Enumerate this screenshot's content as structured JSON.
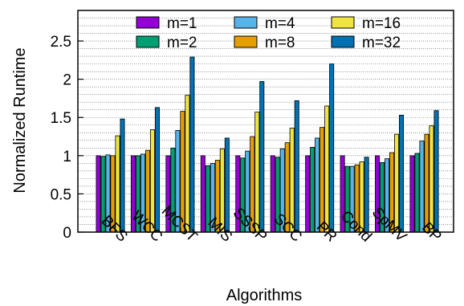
{
  "chart_data": {
    "type": "bar",
    "xlabel": "Algorithms",
    "ylabel": "Normalized Runtime",
    "ylim": [
      0,
      2.9
    ],
    "yticks": [
      0,
      0.5,
      1,
      1.5,
      2,
      2.5
    ],
    "ytick_labels": [
      "0",
      "0.5",
      "1",
      "1.5",
      "2",
      "2.5"
    ],
    "grid": "horizontal dotted lines",
    "legend_position": "top, inside, 3 columns",
    "categories": [
      "BFS",
      "WCC",
      "MCST",
      "MIS",
      "SSSP",
      "SCC",
      "PR",
      "Cond",
      "SpMV",
      "BP"
    ],
    "series": [
      {
        "name": "m=1",
        "color": "#9400d3",
        "values": [
          1.0,
          1.0,
          1.0,
          1.0,
          1.0,
          1.0,
          1.0,
          1.0,
          1.0,
          1.0
        ]
      },
      {
        "name": "m=2",
        "color": "#009e73",
        "values": [
          0.99,
          1.0,
          1.1,
          0.87,
          0.97,
          0.98,
          1.11,
          0.86,
          0.91,
          1.03
        ]
      },
      {
        "name": "m=4",
        "color": "#56b4e9",
        "values": [
          1.01,
          1.02,
          1.33,
          0.9,
          1.06,
          1.09,
          1.23,
          0.86,
          0.96,
          1.19
        ]
      },
      {
        "name": "m=8",
        "color": "#e69f00",
        "values": [
          1.0,
          1.07,
          1.58,
          0.94,
          1.25,
          1.17,
          1.37,
          0.88,
          1.04,
          1.28
        ]
      },
      {
        "name": "m=16",
        "color": "#f0e442",
        "values": [
          1.26,
          1.34,
          1.79,
          1.09,
          1.57,
          1.36,
          1.65,
          0.92,
          1.28,
          1.39
        ]
      },
      {
        "name": "m=32",
        "color": "#0072b2",
        "values": [
          1.48,
          1.63,
          2.29,
          1.23,
          1.97,
          1.72,
          2.2,
          0.98,
          1.53,
          1.59
        ]
      }
    ]
  }
}
